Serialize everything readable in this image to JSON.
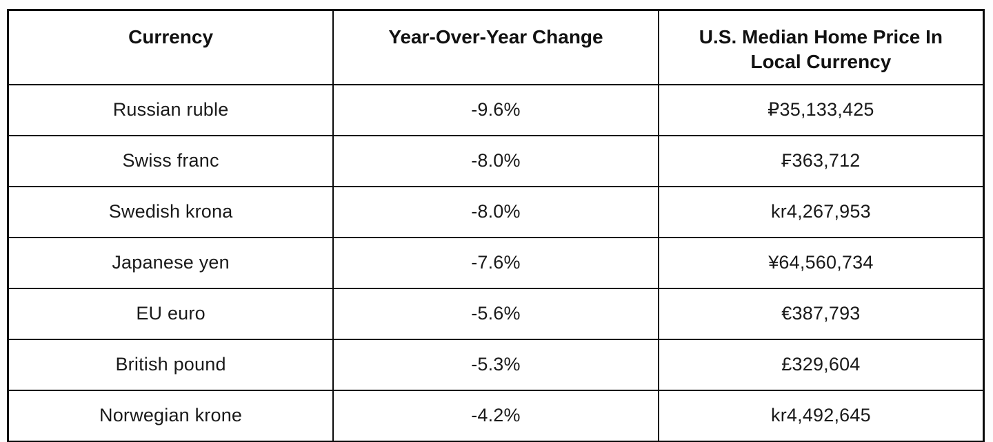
{
  "chart_data": {
    "type": "table",
    "columns": [
      "Currency",
      "Year-Over-Year Change",
      "U.S. Median Home Price In Local Currency"
    ],
    "rows": [
      {
        "currency": "Russian ruble",
        "change": "-9.6%",
        "price": "₽35,133,425"
      },
      {
        "currency": "Swiss franc",
        "change": "-8.0%",
        "price": "₣363,712"
      },
      {
        "currency": "Swedish krona",
        "change": "-8.0%",
        "price": "kr4,267,953"
      },
      {
        "currency": "Japanese yen",
        "change": "-7.6%",
        "price": "¥64,560,734"
      },
      {
        "currency": "EU euro",
        "change": "-5.6%",
        "price": "€387,793"
      },
      {
        "currency": "British pound",
        "change": "-5.3%",
        "price": "£329,604"
      },
      {
        "currency": "Norwegian krone",
        "change": "-4.2%",
        "price": "kr4,492,645"
      }
    ],
    "layout": {
      "grid": "on",
      "header_style": "bold",
      "cell_alignment": "center"
    },
    "colors": {
      "border": "#0a0a0a",
      "text": "#1a1a1a",
      "header_text": "#111111",
      "background": "#ffffff"
    }
  }
}
